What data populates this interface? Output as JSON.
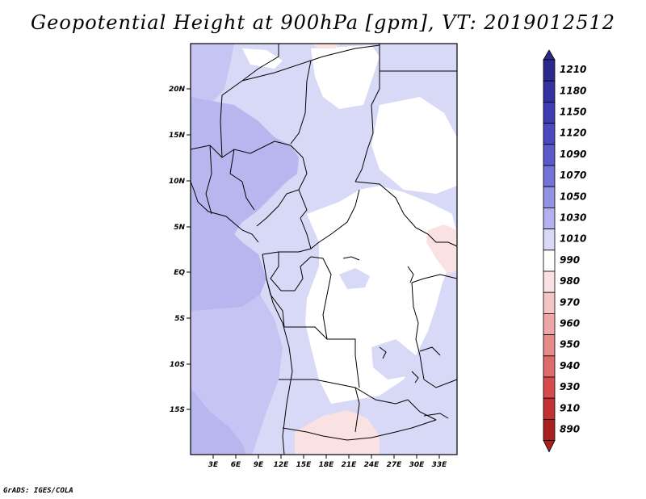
{
  "title": "Geopotential Height at 900hPa [gpm], VT: 2019012512",
  "footer": "GrADS: IGES/COLA",
  "colors": {
    "frame": "#000000",
    "coast": "#000000"
  },
  "map": {
    "lon_labels": [
      "3E",
      "6E",
      "9E",
      "12E",
      "15E",
      "18E",
      "21E",
      "24E",
      "27E",
      "30E",
      "33E"
    ],
    "lat_labels": [
      "20N",
      "15N",
      "10N",
      "5N",
      "EQ",
      "5S",
      "10S",
      "15S"
    ]
  },
  "colorbar": {
    "levels": [
      {
        "label": "1210",
        "color": "#2b2a8c"
      },
      {
        "label": "1180",
        "color": "#3332a0"
      },
      {
        "label": "1150",
        "color": "#3d3cb2"
      },
      {
        "label": "1120",
        "color": "#4a49c0"
      },
      {
        "label": "1090",
        "color": "#5b5acb"
      },
      {
        "label": "1070",
        "color": "#7372d7"
      },
      {
        "label": "1050",
        "color": "#9392e2"
      },
      {
        "label": "1030",
        "color": "#b3b2ee"
      },
      {
        "label": "1010",
        "color": "#d8d8f7"
      },
      {
        "label": "990",
        "color": "#ffffff"
      },
      {
        "label": "980",
        "color": "#fbe2e2"
      },
      {
        "label": "970",
        "color": "#f5c4c4"
      },
      {
        "label": "960",
        "color": "#eea6a6"
      },
      {
        "label": "950",
        "color": "#e68a8a"
      },
      {
        "label": "940",
        "color": "#df6c6c"
      },
      {
        "label": "930",
        "color": "#d44c4c"
      },
      {
        "label": "910",
        "color": "#c23232"
      },
      {
        "label": "890",
        "color": "#a82020"
      }
    ],
    "top_color": "#2b2a8c",
    "bottom_color": "#a82020"
  }
}
